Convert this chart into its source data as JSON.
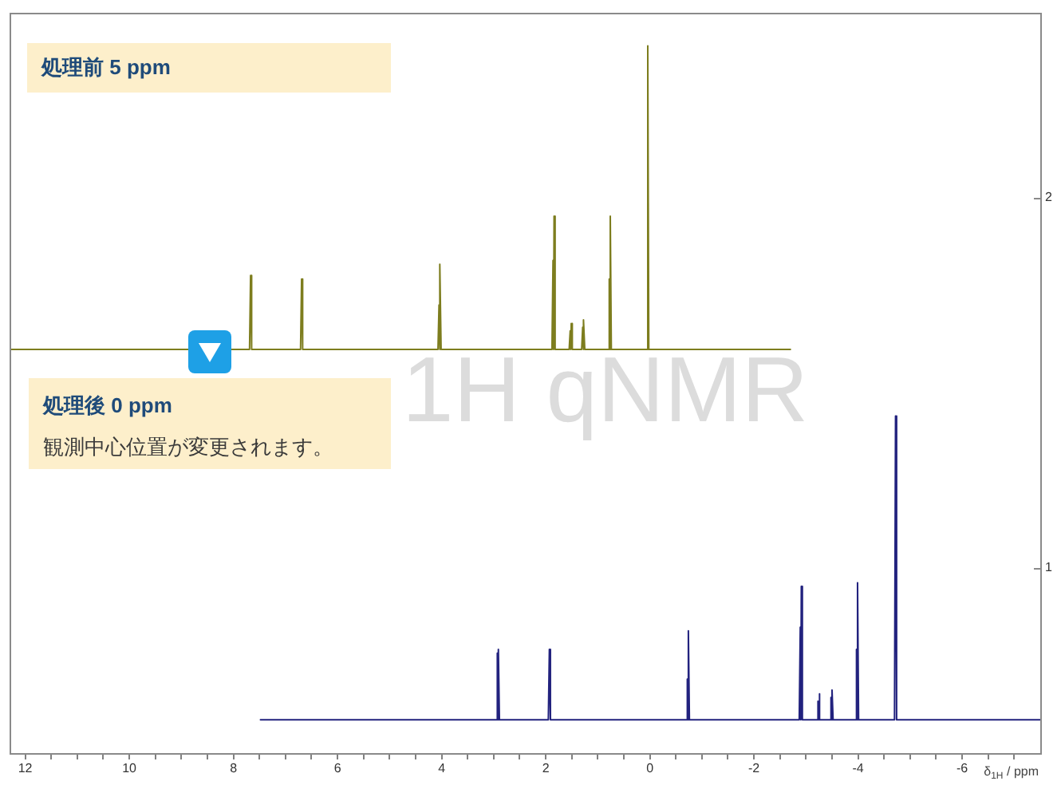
{
  "chart_data": {
    "type": "line",
    "xlabel": "δ$_{1H}$ / ppm",
    "annotations": [
      "処理前 5 ppm",
      "処理後 0 ppm",
      "観測中心位置が変更されます。",
      "1H qNMR"
    ],
    "xlim": [
      12.3,
      -7.5
    ],
    "xticks": [
      12,
      {
        "value": 11.5,
        "label": null
      },
      {
        "value": 11,
        "label": null
      },
      {
        "value": 10.5,
        "label": null
      },
      10,
      {
        "value": 9.5,
        "label": null
      },
      {
        "value": 9,
        "label": null
      },
      {
        "value": 8.5,
        "label": null
      },
      8,
      {
        "value": 7.5,
        "label": null
      },
      {
        "value": 7,
        "label": null
      },
      {
        "value": 6.5,
        "label": null
      },
      6,
      {
        "value": 5.5,
        "label": null
      },
      {
        "value": 5,
        "label": null
      },
      {
        "value": 4.5,
        "label": null
      },
      4,
      {
        "value": 3.5,
        "label": null
      },
      {
        "value": 3,
        "label": null
      },
      {
        "value": 2.5,
        "label": null
      },
      2,
      {
        "value": 1.5,
        "label": null
      },
      {
        "value": 1,
        "label": null
      },
      {
        "value": 0.5,
        "label": null
      },
      0,
      {
        "value": -0.5,
        "label": null
      },
      {
        "value": -1,
        "label": null
      },
      {
        "value": -1.5,
        "label": null
      },
      -2,
      {
        "value": -2.5,
        "label": null
      },
      {
        "value": -3,
        "label": null
      },
      {
        "value": -3.5,
        "label": null
      },
      -4,
      {
        "value": -4.5,
        "label": null
      },
      {
        "value": -5,
        "label": null
      },
      {
        "value": -5.5,
        "label": null
      },
      -6,
      {
        "value": -6.5,
        "label": null
      },
      {
        "value": -7,
        "label": null
      }
    ],
    "ylim": [
      0.5,
      2.5
    ],
    "yticks": [
      1,
      2
    ],
    "grid": false,
    "legend": false,
    "marker": "none",
    "line_style": "solid",
    "series": [
      {
        "color": "#7d7d1e",
        "x": [
          12.3,
          7.69,
          7.67,
          7.65,
          6.71,
          6.69,
          6.67,
          4.07,
          4.05,
          4.04,
          4.03,
          4.01,
          1.88,
          1.86,
          1.85,
          1.84,
          1.82,
          1.55,
          1.53,
          1.52,
          1.51,
          1.49,
          1.31,
          1.29,
          1.28,
          1.27,
          1.25,
          0.8,
          0.78,
          0.77,
          0.76,
          0.74,
          0.06,
          0.04,
          0.02,
          -2.7
        ],
        "values": [
          1.59,
          1.59,
          1.79,
          1.59,
          1.59,
          1.78,
          1.59,
          1.59,
          1.71,
          1.59,
          1.82,
          1.59,
          1.59,
          1.83,
          1.59,
          1.95,
          1.59,
          1.59,
          1.64,
          1.59,
          1.66,
          1.59,
          1.59,
          1.65,
          1.59,
          1.67,
          1.59,
          1.59,
          1.78,
          1.59,
          1.95,
          1.59,
          1.59,
          2.41,
          1.59,
          1.59
        ]
      },
      {
        "color": "#22227e",
        "x": [
          7.48,
          2.95,
          2.93,
          2.92,
          2.91,
          2.89,
          1.95,
          1.93,
          1.91,
          -0.7,
          -0.72,
          -0.73,
          -0.74,
          -0.76,
          -2.87,
          -2.89,
          -2.9,
          -2.91,
          -2.93,
          -3.21,
          -3.23,
          -3.24,
          -3.25,
          -3.27,
          -3.46,
          -3.48,
          -3.49,
          -3.5,
          -3.52,
          -3.95,
          -3.97,
          -3.98,
          -3.99,
          -4.01,
          -4.7,
          -4.72,
          -4.74,
          -7.5
        ],
        "values": [
          0.59,
          0.59,
          0.77,
          0.59,
          0.78,
          0.59,
          0.59,
          0.78,
          0.59,
          0.59,
          0.7,
          0.59,
          0.83,
          0.59,
          0.59,
          0.84,
          0.59,
          0.95,
          0.59,
          0.59,
          0.64,
          0.59,
          0.66,
          0.59,
          0.59,
          0.65,
          0.59,
          0.67,
          0.59,
          0.59,
          0.78,
          0.59,
          0.96,
          0.59,
          0.59,
          1.41,
          0.59,
          0.59
        ]
      }
    ]
  }
}
